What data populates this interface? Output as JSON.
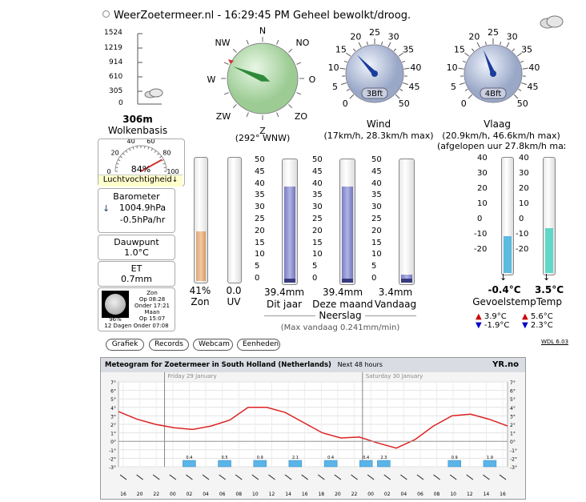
{
  "header": {
    "site": "WeerZoetermeer.nl",
    "status": "- 16:29:45 PM Geheel bewolkt/droog."
  },
  "cloudbase": {
    "ticks": [
      "1524",
      "1219",
      "914",
      "610",
      "305",
      "0"
    ],
    "value": "306m",
    "label": "Wolkenbasis"
  },
  "compass": {
    "directions": [
      "N",
      "NO",
      "O",
      "ZO",
      "Z",
      "ZW",
      "W",
      "NW"
    ],
    "reading": "(292° WNW)",
    "degrees": 292
  },
  "wind": {
    "ticks": [
      "0",
      "5",
      "10",
      "15",
      "20",
      "25",
      "30",
      "35",
      "40",
      "45",
      "50"
    ],
    "bft": "3Bft",
    "label": "Wind",
    "detail": "(17km/h, 28.3km/h max)",
    "value_kmh": 17
  },
  "gust": {
    "ticks": [
      "0",
      "5",
      "10",
      "15",
      "20",
      "25",
      "30",
      "35",
      "40",
      "45",
      "50"
    ],
    "bft": "4Bft",
    "label": "Vlaag",
    "detail": "(20.9km/h, 46.6km/h max)",
    "detail2": "(afgelopen uur 27.8km/h max)",
    "value_kmh": 20.9
  },
  "humidity": {
    "ticks": [
      "0",
      "20",
      "40",
      "60",
      "80",
      "100"
    ],
    "value": "84%",
    "label": "Luchtvochtigheid",
    "percent": 84
  },
  "barometer": {
    "title": "Barometer",
    "value": "1004.9hPa",
    "trend": "-0.5hPa/hr",
    "arrow": "↓"
  },
  "dewpoint": {
    "title": "Dauwpunt",
    "value": "1.0°C"
  },
  "et": {
    "title": "ET",
    "value": "0.7mm"
  },
  "moon": {
    "zon": "Zon",
    "zon_op": "Op 08:28",
    "zon_onder": "Onder 17:21",
    "maan": "Maan",
    "pct": "96%",
    "maan_op": "Op 15:07",
    "footer": "12 Dagen Onder 07:08"
  },
  "sun_bar": {
    "value": "41%",
    "label": "Zon",
    "percent": 41
  },
  "uv_bar": {
    "value": "0.0",
    "label": "UV",
    "percent": 0
  },
  "rain": {
    "ticks": [
      "50",
      "45",
      "40",
      "35",
      "30",
      "25",
      "20",
      "15",
      "10",
      "5",
      "0"
    ],
    "year": {
      "value": "39.4mm",
      "label": "Dit jaar",
      "mm": 39.4
    },
    "month": {
      "value": "39.4mm",
      "label": "Deze maand",
      "mm": 39.4
    },
    "today": {
      "value": "3.4mm",
      "label": "Vandaag",
      "mm": 3.4
    },
    "title": "Neerslag",
    "maxrate": "(Max vandaag 0.241mm/min)"
  },
  "temps": {
    "ticks": [
      "40",
      "30",
      "20",
      "10",
      "0",
      "-10",
      "-20"
    ],
    "feels": {
      "value": "-0.4°C",
      "label": "Gevoelstemp",
      "hi": "3.9°C",
      "lo": "-1.9°C",
      "c": -0.4
    },
    "temp": {
      "value": "3.5°C",
      "label": "Temp",
      "hi": "5.6°C",
      "lo": "2.3°C",
      "c": 3.5
    }
  },
  "buttons": [
    "Grafiek",
    "Records",
    "Webcam",
    "Eenheden"
  ],
  "version": "WDL 6.03",
  "meteogram": {
    "title": "Meteogram for Zoetermeer in South Holland (Netherlands)",
    "subtitle": "Next 48 hours",
    "logo": "YR.no",
    "day1": "Friday",
    "day1_date": "29 January",
    "day2": "Saturday",
    "day2_date": "30 January",
    "y_left": [
      "7°",
      "6°",
      "5°",
      "4°",
      "3°",
      "2°",
      "1°",
      "0°",
      "-1°",
      "-2°",
      "-3°"
    ],
    "y_right": [
      "7°",
      "6°",
      "5°",
      "4°",
      "3°",
      "2°",
      "1°",
      "0°",
      "-1°",
      "-2°",
      "-3°"
    ],
    "hours": [
      "16",
      "20",
      "22",
      "00",
      "02",
      "04",
      "06",
      "08",
      "10",
      "12",
      "14",
      "16",
      "18",
      "20",
      "22",
      "00",
      "02",
      "04",
      "06",
      "08",
      "10",
      "12",
      "14",
      "16"
    ],
    "precip_labels": [
      "0.4",
      "0.5",
      "0.9",
      "2.1",
      "0.4",
      "0.4",
      "2.3",
      "0.9",
      "1.9"
    ]
  }
}
